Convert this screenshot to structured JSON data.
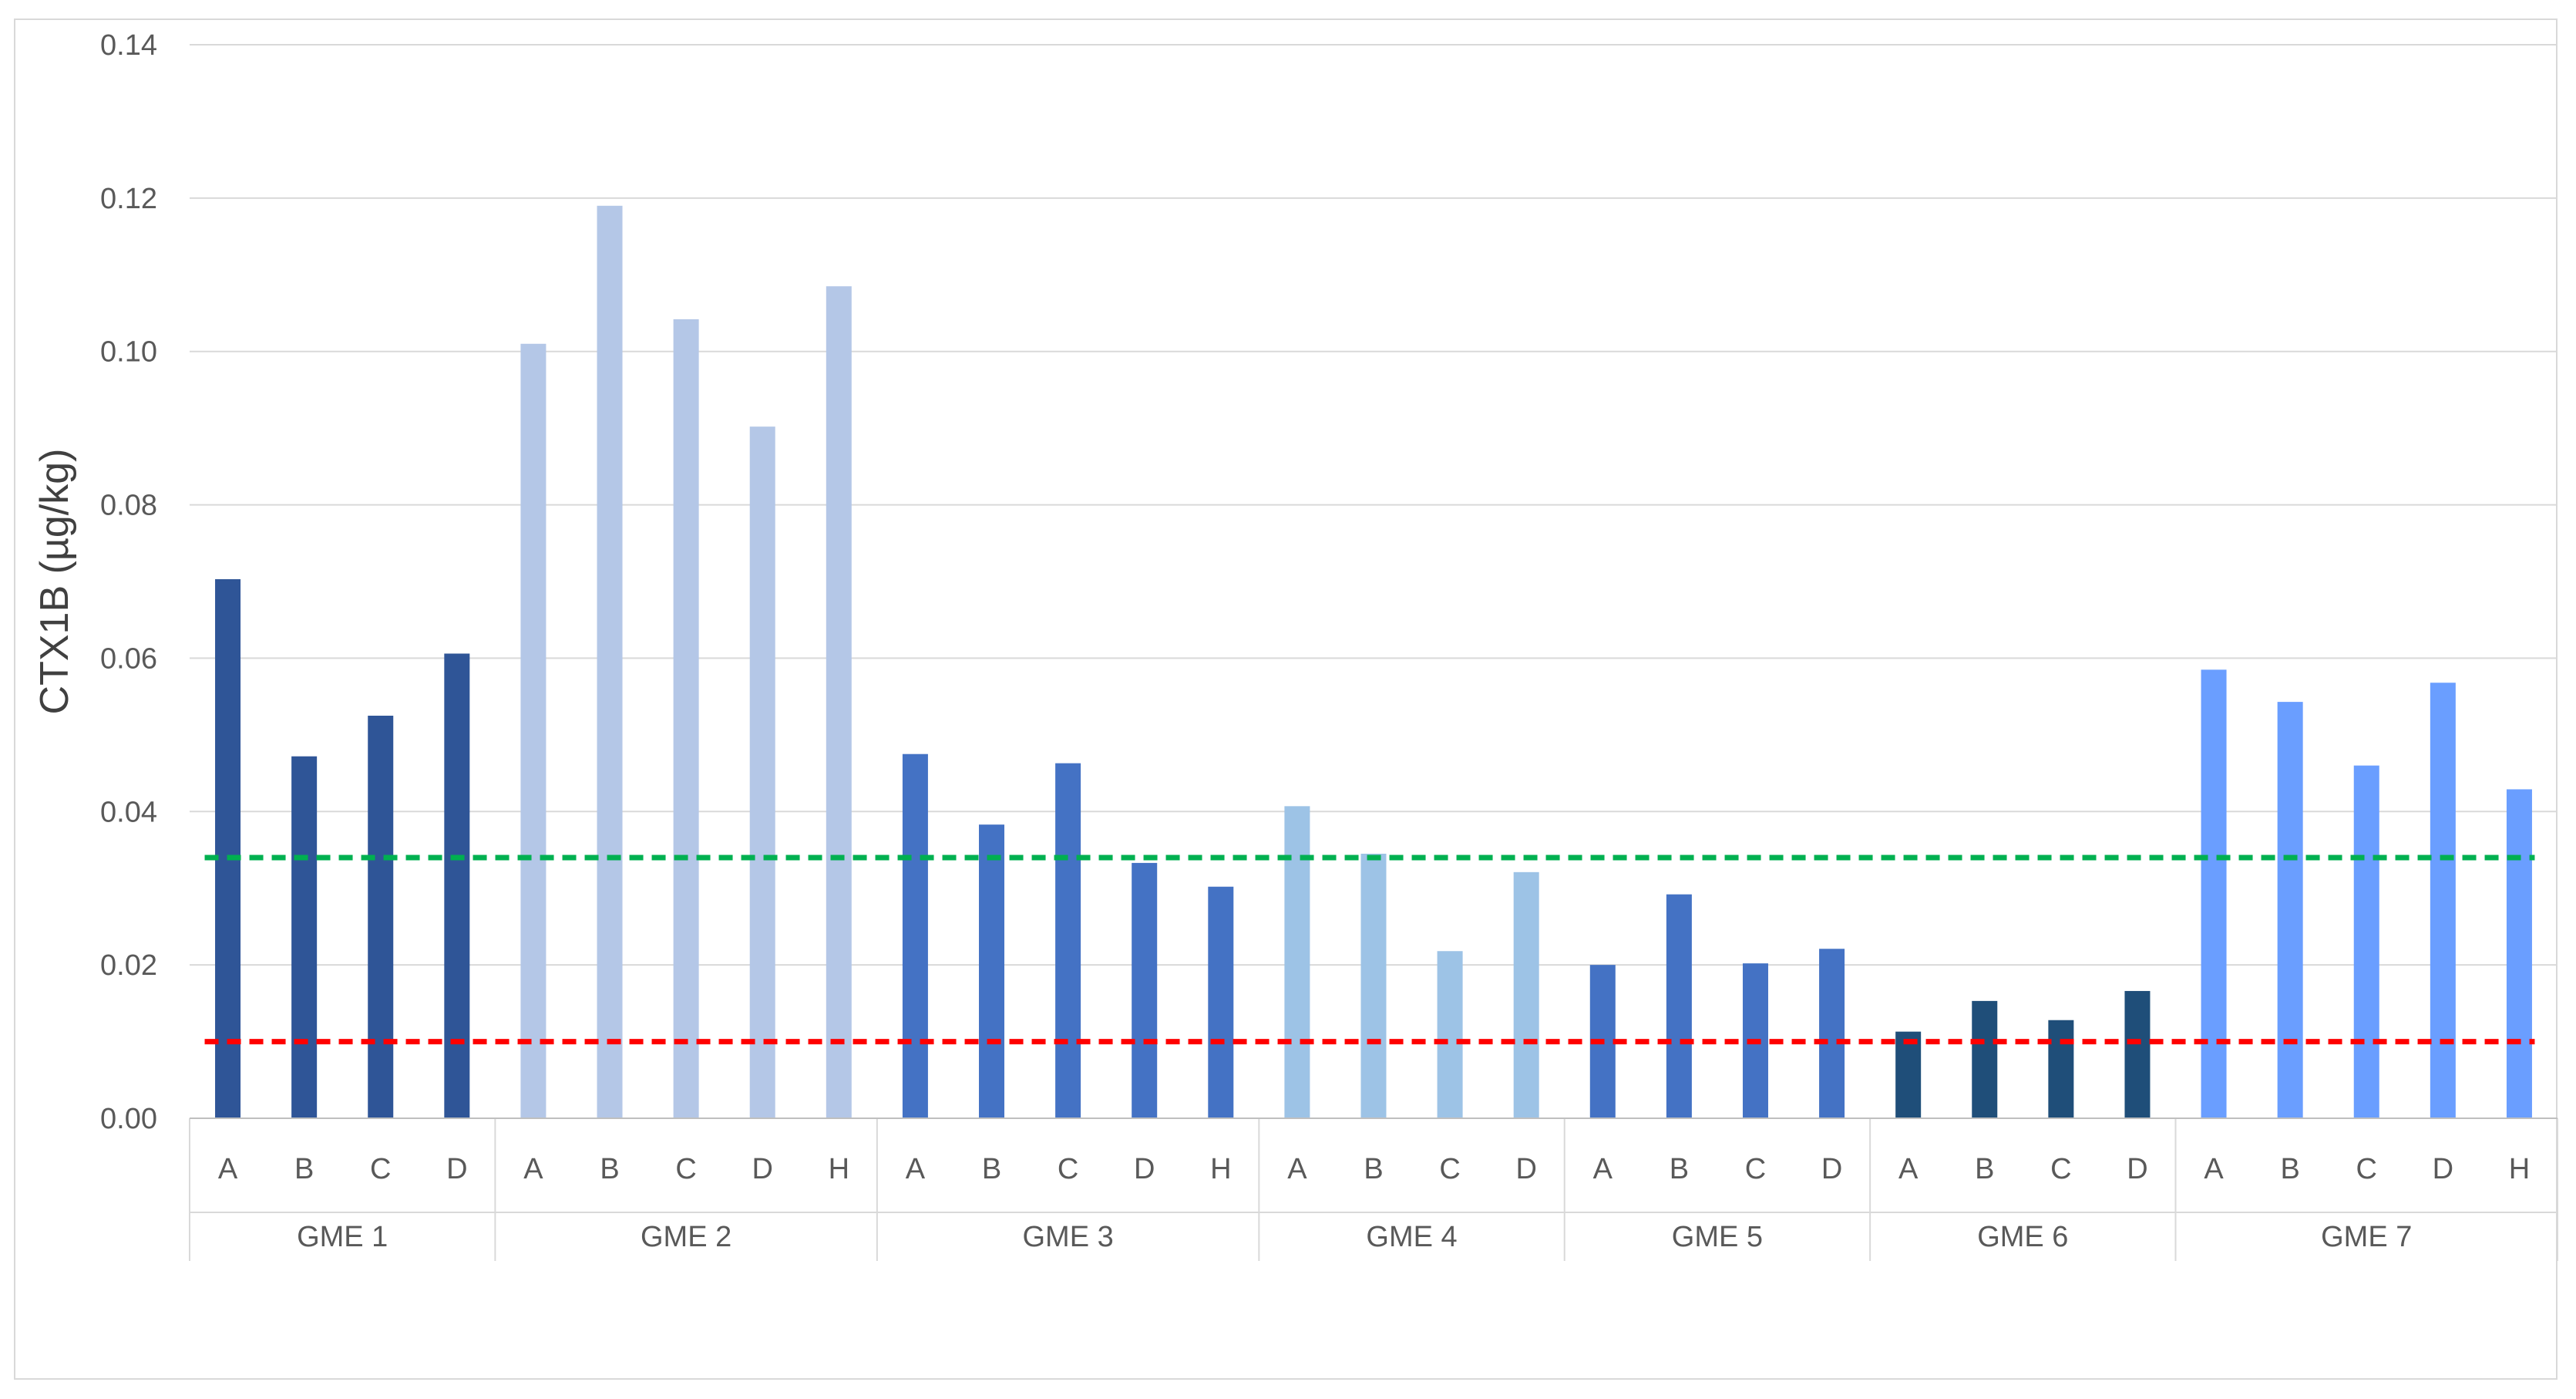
{
  "chart_data": {
    "type": "bar",
    "title": "",
    "xlabel": "",
    "ylabel": "CTX1B (µg/kg)",
    "ylim": [
      0,
      0.14
    ],
    "yticks": [
      "0.00",
      "0.02",
      "0.04",
      "0.06",
      "0.08",
      "0.10",
      "0.12",
      "0.14"
    ],
    "grid": true,
    "legend": "none",
    "groups": [
      {
        "name": "GME 1",
        "color": "#2f5597",
        "categories": [
          "A",
          "B",
          "C",
          "D"
        ],
        "values": [
          0.0703,
          0.0472,
          0.0525,
          0.0606
        ]
      },
      {
        "name": "GME 2",
        "color": "#b4c7e7",
        "categories": [
          "A",
          "B",
          "C",
          "D",
          "H"
        ],
        "values": [
          0.101,
          0.119,
          0.1042,
          0.0902,
          0.1085
        ]
      },
      {
        "name": "GME 3",
        "color": "#4472c4",
        "categories": [
          "A",
          "B",
          "C",
          "D",
          "H"
        ],
        "values": [
          0.0475,
          0.0383,
          0.0463,
          0.0333,
          0.0302
        ]
      },
      {
        "name": "GME 4",
        "color": "#9dc3e6",
        "categories": [
          "A",
          "B",
          "C",
          "D"
        ],
        "values": [
          0.0407,
          0.0345,
          0.0218,
          0.0321
        ]
      },
      {
        "name": "GME 5",
        "color": "#4472c4",
        "categories": [
          "A",
          "B",
          "C",
          "D"
        ],
        "values": [
          0.02,
          0.0292,
          0.0202,
          0.0221
        ]
      },
      {
        "name": "GME 6",
        "color": "#1f4e79",
        "categories": [
          "A",
          "B",
          "C",
          "D"
        ],
        "values": [
          0.0113,
          0.0153,
          0.0128,
          0.0166
        ]
      },
      {
        "name": "GME 7",
        "color": "#6a9eff",
        "categories": [
          "A",
          "B",
          "C",
          "D",
          "H"
        ],
        "values": [
          0.0585,
          0.0543,
          0.046,
          0.0568,
          0.0429
        ]
      }
    ],
    "reference_lines": [
      {
        "value": 0.034,
        "color": "#00b050",
        "style": "dashed"
      },
      {
        "value": 0.01,
        "color": "#ff0000",
        "style": "dashed"
      }
    ]
  }
}
